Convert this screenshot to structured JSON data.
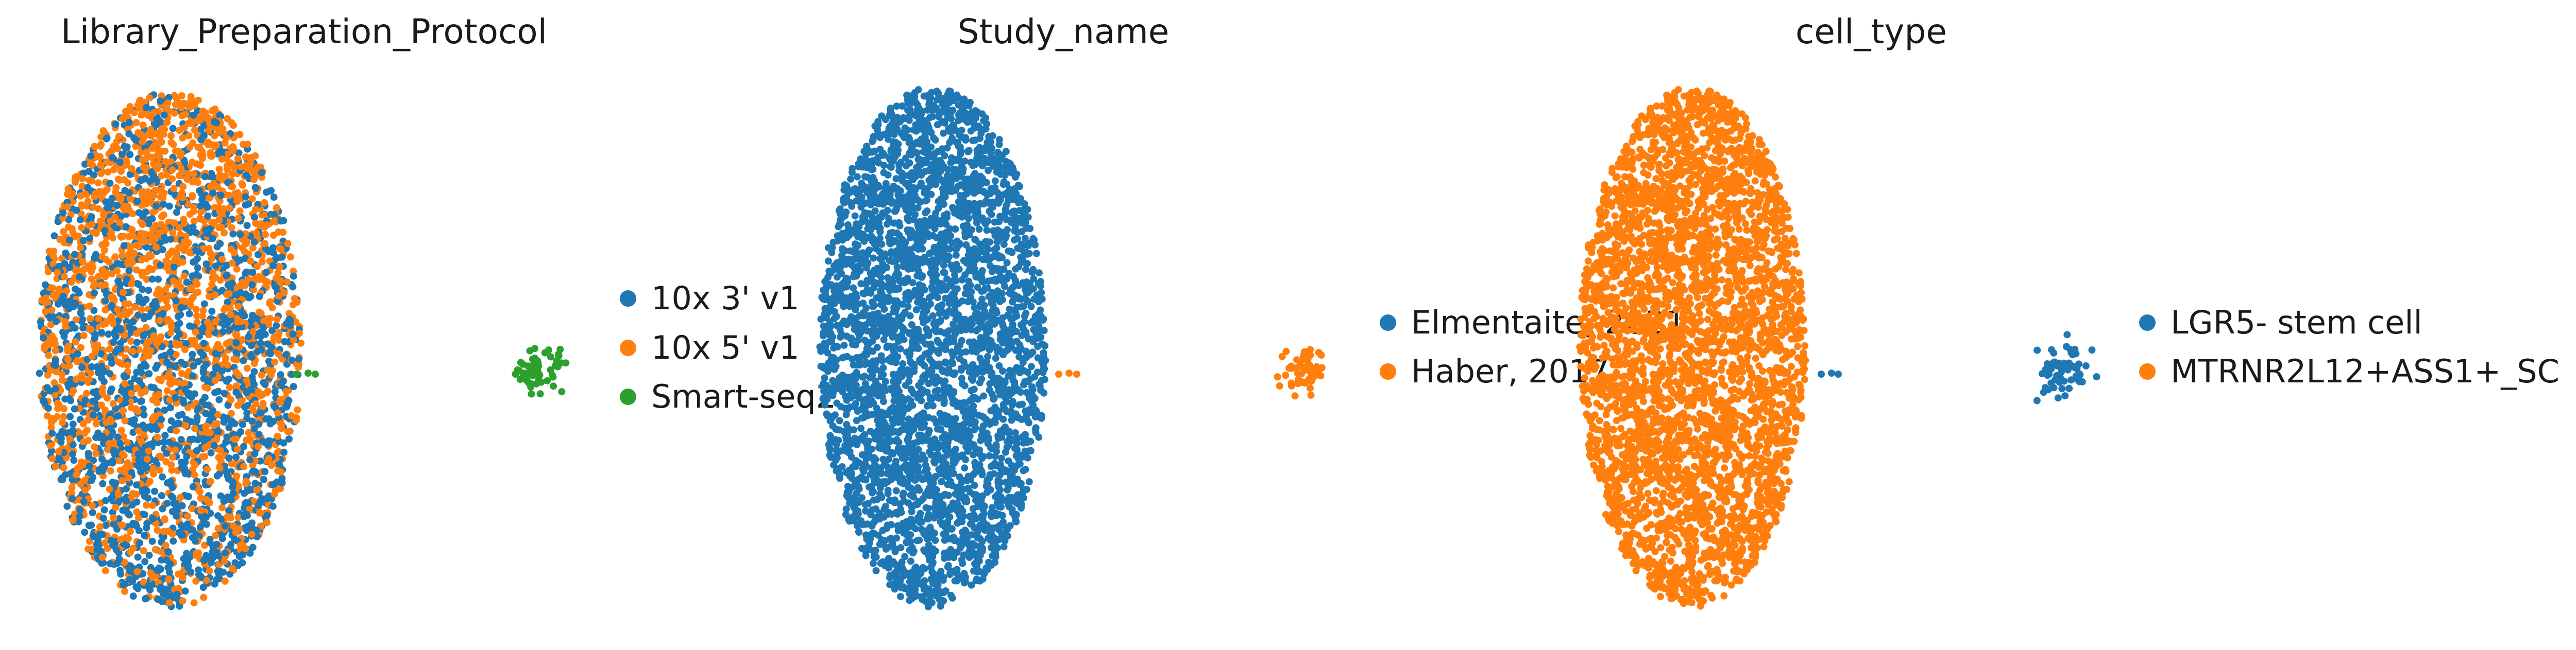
{
  "chart_data": [
    {
      "type": "scatter",
      "title": "Library_Preparation_Protocol",
      "xlabel": "",
      "ylabel": "",
      "grid": false,
      "legend_position": "right",
      "series": [
        {
          "name": "10x 3' v1",
          "color": "#1f77b4"
        },
        {
          "name": "10x 5' v1",
          "color": "#ff7f0e"
        },
        {
          "name": "Smart-seq2",
          "color": "#2ca02c"
        }
      ]
    },
    {
      "type": "scatter",
      "title": "Study_name",
      "xlabel": "",
      "ylabel": "",
      "grid": false,
      "legend_position": "right",
      "series": [
        {
          "name": "Elmentaite, 2021",
          "color": "#1f77b4"
        },
        {
          "name": "Haber, 2017",
          "color": "#ff7f0e"
        }
      ]
    },
    {
      "type": "scatter",
      "title": "cell_type",
      "xlabel": "",
      "ylabel": "",
      "grid": false,
      "legend_position": "right",
      "series": [
        {
          "name": "LGR5- stem cell",
          "color": "#1f77b4"
        },
        {
          "name": "MTRNR2L12+ASS1+_SC",
          "color": "#ff7f0e"
        }
      ]
    }
  ]
}
